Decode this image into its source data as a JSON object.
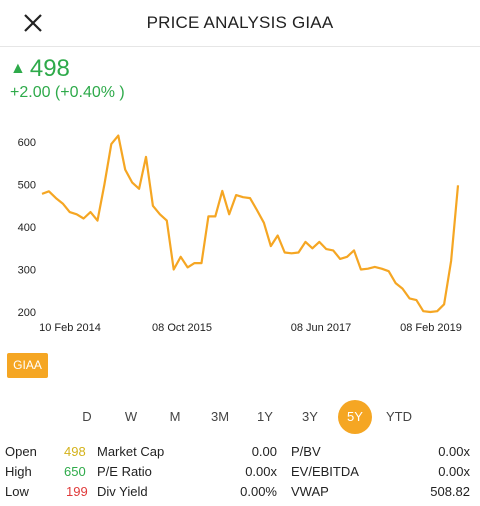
{
  "header": {
    "title": "PRICE ANALYSIS GIAA",
    "close_icon": "close-icon"
  },
  "quote": {
    "price": "498",
    "direction": "up",
    "change": "+2.00 (+0.40% )",
    "color": "#2eaa4a"
  },
  "ticker_badge": "GIAA",
  "periods": {
    "items": [
      "D",
      "W",
      "M",
      "3M",
      "1Y",
      "3Y",
      "5Y",
      "YTD"
    ],
    "active": "5Y"
  },
  "stats": {
    "open_label": "Open",
    "open_value": "498",
    "high_label": "High",
    "high_value": "650",
    "low_label": "Low",
    "low_value": "199",
    "market_cap_label": "Market Cap",
    "market_cap_value": "0.00",
    "pe_label": "P/E Ratio",
    "pe_value": "0.00x",
    "div_label": "Div Yield",
    "div_value": "0.00%",
    "pbv_label": "P/BV",
    "pbv_value": "0.00x",
    "ev_label": "EV/EBITDA",
    "ev_value": "0.00x",
    "vwap_label": "VWAP",
    "vwap_value": "508.82"
  },
  "chart_data": {
    "type": "line",
    "color": "#f5a623",
    "ylim": [
      200,
      600
    ],
    "y_ticks": [
      "600",
      "500",
      "400",
      "300",
      "200"
    ],
    "x_tick_labels": [
      "10 Feb 2014",
      "08 Oct 2015",
      "08 Jun 2017",
      "08 Feb 2019"
    ],
    "series": [
      {
        "values": [
          478,
          484,
          468,
          455,
          435,
          430,
          420,
          435,
          415,
          500,
          595,
          615,
          535,
          505,
          490,
          565,
          450,
          430,
          415,
          300,
          330,
          305,
          315,
          315,
          425,
          425,
          485,
          430,
          475,
          470,
          468,
          440,
          410,
          355,
          380,
          340,
          338,
          340,
          365,
          350,
          365,
          348,
          345,
          325,
          330,
          345,
          300,
          302,
          306,
          302,
          296,
          268,
          255,
          232,
          228,
          202,
          200,
          202,
          218,
          320,
          498
        ]
      }
    ]
  }
}
